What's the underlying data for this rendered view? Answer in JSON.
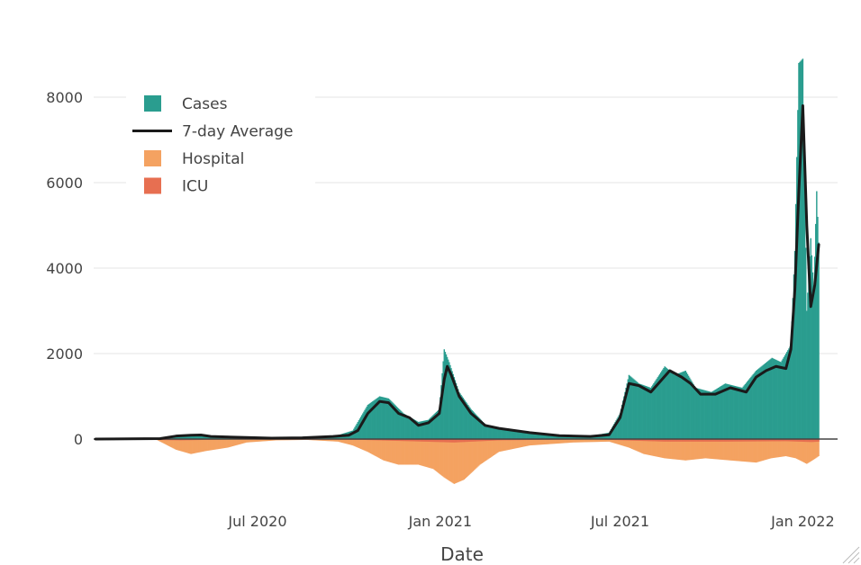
{
  "chart_data": {
    "type": "bar",
    "xlabel": "Date",
    "ylabel": "",
    "x_range": [
      "2020-01-18",
      "2022-02-05"
    ],
    "ylim": [
      -1700,
      9300
    ],
    "y_ticks": [
      0,
      2000,
      4000,
      6000,
      8000
    ],
    "x_ticks": [
      {
        "date": "2020-07-01",
        "label": "Jul 2020"
      },
      {
        "date": "2021-01-01",
        "label": "Jan 2021"
      },
      {
        "date": "2021-07-01",
        "label": "Jul 2021"
      },
      {
        "date": "2022-01-01",
        "label": "Jan 2022"
      }
    ],
    "grid": "horizontal",
    "legend_position": "top-left",
    "legend": [
      {
        "name": "Cases",
        "color": "#2a9d8f",
        "kind": "bar"
      },
      {
        "name": "7-day Average",
        "color": "#1a1a1a",
        "kind": "line"
      },
      {
        "name": "Hospital",
        "color": "#f4a261",
        "kind": "bar"
      },
      {
        "name": "ICU",
        "color": "#e76f51",
        "kind": "bar"
      }
    ],
    "series": [
      {
        "name": "Cases",
        "color": "#2a9d8f",
        "points": [
          [
            "2020-01-20",
            0
          ],
          [
            "2020-03-01",
            10
          ],
          [
            "2020-04-01",
            40
          ],
          [
            "2020-04-15",
            90
          ],
          [
            "2020-04-25",
            100
          ],
          [
            "2020-05-05",
            110
          ],
          [
            "2020-05-15",
            80
          ],
          [
            "2020-06-01",
            60
          ],
          [
            "2020-07-01",
            30
          ],
          [
            "2020-08-01",
            30
          ],
          [
            "2020-09-01",
            60
          ],
          [
            "2020-09-20",
            90
          ],
          [
            "2020-10-05",
            200
          ],
          [
            "2020-10-20",
            800
          ],
          [
            "2020-11-01",
            1000
          ],
          [
            "2020-11-10",
            950
          ],
          [
            "2020-11-25",
            600
          ],
          [
            "2020-12-10",
            400
          ],
          [
            "2020-12-20",
            450
          ],
          [
            "2020-12-31",
            700
          ],
          [
            "2021-01-05",
            2100
          ],
          [
            "2021-01-10",
            1800
          ],
          [
            "2021-01-20",
            1100
          ],
          [
            "2021-02-01",
            700
          ],
          [
            "2021-02-15",
            350
          ],
          [
            "2021-03-01",
            250
          ],
          [
            "2021-04-01",
            150
          ],
          [
            "2021-05-01",
            80
          ],
          [
            "2021-06-01",
            70
          ],
          [
            "2021-06-20",
            150
          ],
          [
            "2021-07-01",
            600
          ],
          [
            "2021-07-10",
            1500
          ],
          [
            "2021-07-20",
            1300
          ],
          [
            "2021-08-01",
            1200
          ],
          [
            "2021-08-15",
            1700
          ],
          [
            "2021-08-25",
            1500
          ],
          [
            "2021-09-05",
            1600
          ],
          [
            "2021-09-15",
            1200
          ],
          [
            "2021-10-01",
            1100
          ],
          [
            "2021-10-15",
            1300
          ],
          [
            "2021-11-01",
            1200
          ],
          [
            "2021-11-15",
            1600
          ],
          [
            "2021-12-01",
            1900
          ],
          [
            "2021-12-10",
            1800
          ],
          [
            "2021-12-20",
            2200
          ],
          [
            "2021-12-24",
            4400
          ],
          [
            "2021-12-28",
            8800
          ],
          [
            "2022-01-01",
            8900
          ],
          [
            "2022-01-05",
            3000
          ],
          [
            "2022-01-09",
            4700
          ],
          [
            "2022-01-12",
            3500
          ],
          [
            "2022-01-15",
            5800
          ],
          [
            "2022-01-17",
            4600
          ]
        ]
      },
      {
        "name": "7-day Average",
        "color": "#1a1a1a",
        "points": [
          [
            "2020-01-20",
            0
          ],
          [
            "2020-03-25",
            10
          ],
          [
            "2020-04-10",
            70
          ],
          [
            "2020-04-25",
            90
          ],
          [
            "2020-05-05",
            95
          ],
          [
            "2020-05-15",
            60
          ],
          [
            "2020-06-15",
            40
          ],
          [
            "2020-07-15",
            20
          ],
          [
            "2020-08-15",
            30
          ],
          [
            "2020-09-15",
            60
          ],
          [
            "2020-10-01",
            90
          ],
          [
            "2020-10-10",
            200
          ],
          [
            "2020-10-20",
            600
          ],
          [
            "2020-11-01",
            880
          ],
          [
            "2020-11-10",
            850
          ],
          [
            "2020-11-20",
            600
          ],
          [
            "2020-12-01",
            500
          ],
          [
            "2020-12-10",
            320
          ],
          [
            "2020-12-20",
            380
          ],
          [
            "2020-12-31",
            600
          ],
          [
            "2021-01-05",
            1400
          ],
          [
            "2021-01-08",
            1700
          ],
          [
            "2021-01-12",
            1500
          ],
          [
            "2021-01-20",
            1000
          ],
          [
            "2021-02-01",
            600
          ],
          [
            "2021-02-15",
            320
          ],
          [
            "2021-03-01",
            250
          ],
          [
            "2021-04-01",
            150
          ],
          [
            "2021-05-01",
            80
          ],
          [
            "2021-06-01",
            60
          ],
          [
            "2021-06-20",
            100
          ],
          [
            "2021-07-01",
            500
          ],
          [
            "2021-07-10",
            1300
          ],
          [
            "2021-07-20",
            1250
          ],
          [
            "2021-08-01",
            1100
          ],
          [
            "2021-08-20",
            1600
          ],
          [
            "2021-09-01",
            1450
          ],
          [
            "2021-09-10",
            1300
          ],
          [
            "2021-09-20",
            1050
          ],
          [
            "2021-10-05",
            1050
          ],
          [
            "2021-10-20",
            1200
          ],
          [
            "2021-11-05",
            1100
          ],
          [
            "2021-11-15",
            1450
          ],
          [
            "2021-11-25",
            1600
          ],
          [
            "2021-12-05",
            1700
          ],
          [
            "2021-12-15",
            1650
          ],
          [
            "2021-12-20",
            2100
          ],
          [
            "2021-12-24",
            3500
          ],
          [
            "2021-12-28",
            5800
          ],
          [
            "2022-01-01",
            7800
          ],
          [
            "2022-01-05",
            5000
          ],
          [
            "2022-01-09",
            3100
          ],
          [
            "2022-01-13",
            3600
          ],
          [
            "2022-01-17",
            4550
          ]
        ]
      },
      {
        "name": "Hospital",
        "color": "#f4a261",
        "points": [
          [
            "2020-01-20",
            0
          ],
          [
            "2020-03-20",
            0
          ],
          [
            "2020-04-10",
            -250
          ],
          [
            "2020-04-25",
            -350
          ],
          [
            "2020-05-10",
            -280
          ],
          [
            "2020-06-01",
            -200
          ],
          [
            "2020-06-20",
            -80
          ],
          [
            "2020-07-20",
            -30
          ],
          [
            "2020-08-20",
            -20
          ],
          [
            "2020-09-20",
            -60
          ],
          [
            "2020-10-05",
            -150
          ],
          [
            "2020-10-20",
            -300
          ],
          [
            "2020-11-05",
            -500
          ],
          [
            "2020-11-20",
            -600
          ],
          [
            "2020-12-10",
            -600
          ],
          [
            "2020-12-25",
            -700
          ],
          [
            "2021-01-05",
            -900
          ],
          [
            "2021-01-15",
            -1050
          ],
          [
            "2021-01-25",
            -950
          ],
          [
            "2021-02-10",
            -600
          ],
          [
            "2021-03-01",
            -300
          ],
          [
            "2021-04-01",
            -150
          ],
          [
            "2021-05-15",
            -80
          ],
          [
            "2021-06-20",
            -60
          ],
          [
            "2021-07-10",
            -200
          ],
          [
            "2021-07-25",
            -350
          ],
          [
            "2021-08-15",
            -450
          ],
          [
            "2021-09-05",
            -500
          ],
          [
            "2021-09-25",
            -450
          ],
          [
            "2021-10-20",
            -500
          ],
          [
            "2021-11-15",
            -550
          ],
          [
            "2021-11-30",
            -450
          ],
          [
            "2021-12-15",
            -400
          ],
          [
            "2021-12-25",
            -450
          ],
          [
            "2022-01-05",
            -580
          ],
          [
            "2022-01-12",
            -480
          ],
          [
            "2022-01-17",
            -400
          ]
        ]
      },
      {
        "name": "ICU",
        "color": "#e76f51",
        "points": [
          [
            "2020-01-20",
            0
          ],
          [
            "2020-04-15",
            -30
          ],
          [
            "2020-06-01",
            -10
          ],
          [
            "2020-10-15",
            -20
          ],
          [
            "2020-12-01",
            -50
          ],
          [
            "2021-01-15",
            -80
          ],
          [
            "2021-03-01",
            -30
          ],
          [
            "2021-06-01",
            -5
          ],
          [
            "2021-08-15",
            -60
          ],
          [
            "2021-10-15",
            -60
          ],
          [
            "2021-12-15",
            -50
          ],
          [
            "2022-01-10",
            -70
          ],
          [
            "2022-01-17",
            -60
          ]
        ]
      }
    ]
  }
}
